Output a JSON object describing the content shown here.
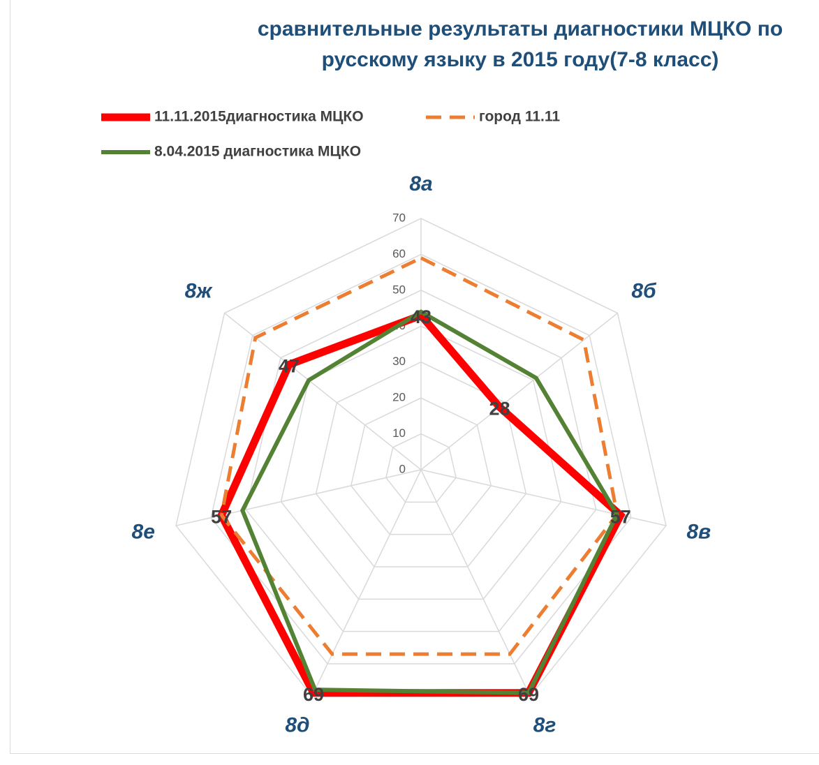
{
  "chart_data": {
    "type": "radar",
    "title": "сравнительные результаты диагностики МЦКО по русскому языку в 2015 году(7-8 класс)",
    "categories": [
      "8а",
      "8б",
      "8в",
      "8г",
      "8д",
      "8е",
      "8ж"
    ],
    "series": [
      {
        "name": "11.11.2015диагностика МЦКО",
        "color": "#ff0000",
        "style": "solid",
        "values": [
          43,
          28,
          57,
          69,
          69,
          57,
          47
        ]
      },
      {
        "name": "город 11.11",
        "color": "#ed7d31",
        "style": "dashed",
        "values": [
          59,
          58,
          56,
          57,
          57,
          57,
          59
        ]
      },
      {
        "name": "8.04.2015 диагностика МЦКО",
        "color": "#548235",
        "style": "solid",
        "values": [
          44,
          41,
          56,
          69,
          68,
          51,
          40
        ]
      }
    ],
    "ylim": [
      0,
      70
    ],
    "yticks": [
      0,
      10,
      20,
      30,
      40,
      50,
      60,
      70
    ],
    "grid": true
  }
}
